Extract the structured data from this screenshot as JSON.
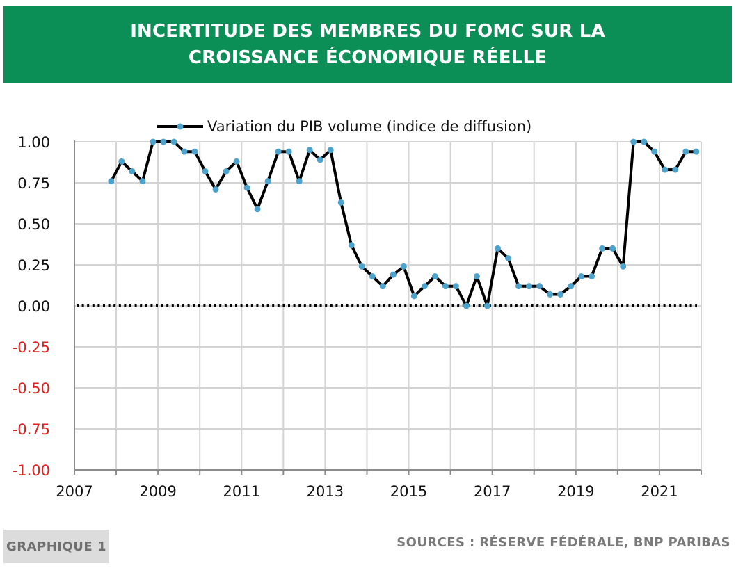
{
  "header": {
    "title_line1": "INCERTITUDE DES MEMBRES DU FOMC SUR LA",
    "title_line2": "CROISSANCE ÉCONOMIQUE RÉELLE"
  },
  "footer": {
    "tag": "GRAPHIQUE 1",
    "source": "SOURCES : RÉSERVE FÉDÉRALE, BNP PARIBAS"
  },
  "colors": {
    "banner": "#0b8f57",
    "line": "#000000",
    "marker": "#4ea3cc",
    "negative_tick": "#e02020",
    "grid": "#d4d4d4"
  },
  "chart_data": {
    "type": "line",
    "title": "",
    "xlabel": "",
    "ylabel": "",
    "legend_position": "top",
    "grid": true,
    "ylim": [
      -1.0,
      1.0
    ],
    "xlim": [
      2007,
      2021.9
    ],
    "x_ticks": [
      "2007",
      "2009",
      "2011",
      "2013",
      "2015",
      "2017",
      "2019",
      "2021"
    ],
    "y_ticks": [
      "1.00",
      "0.75",
      "0.50",
      "0.25",
      "0.00",
      "-0.25",
      "-0.50",
      "-0.75",
      "-1.00"
    ],
    "reference_line": {
      "y": 0.0,
      "style": "dotted"
    },
    "series": [
      {
        "name": "Variation du PIB volume (indice de diffusion)",
        "x": [
          2007.88,
          2008.13,
          2008.38,
          2008.63,
          2008.88,
          2009.13,
          2009.38,
          2009.63,
          2009.88,
          2010.13,
          2010.38,
          2010.63,
          2010.88,
          2011.13,
          2011.38,
          2011.63,
          2011.88,
          2012.13,
          2012.38,
          2012.63,
          2012.88,
          2013.13,
          2013.38,
          2013.63,
          2013.88,
          2014.13,
          2014.38,
          2014.63,
          2014.88,
          2015.13,
          2015.38,
          2015.63,
          2015.88,
          2016.13,
          2016.38,
          2016.63,
          2016.88,
          2017.13,
          2017.38,
          2017.63,
          2017.88,
          2018.13,
          2018.38,
          2018.63,
          2018.88,
          2019.13,
          2019.38,
          2019.63,
          2019.88,
          2020.13,
          2020.38,
          2020.63,
          2020.88,
          2021.13,
          2021.38,
          2021.63,
          2021.88
        ],
        "values": [
          0.76,
          0.88,
          0.82,
          0.76,
          1.0,
          1.0,
          1.0,
          0.94,
          0.94,
          0.82,
          0.71,
          0.82,
          0.88,
          0.72,
          0.59,
          0.76,
          0.94,
          0.94,
          0.76,
          0.95,
          0.89,
          0.95,
          0.63,
          0.37,
          0.24,
          0.18,
          0.12,
          0.19,
          0.24,
          0.06,
          0.12,
          0.18,
          0.12,
          0.12,
          0.0,
          0.18,
          0.0,
          0.35,
          0.29,
          0.12,
          0.12,
          0.12,
          0.07,
          0.07,
          0.12,
          0.18,
          0.18,
          0.35,
          0.35,
          0.24,
          1.0,
          1.0,
          0.94,
          0.83,
          0.83,
          0.94,
          0.94
        ]
      }
    ]
  }
}
